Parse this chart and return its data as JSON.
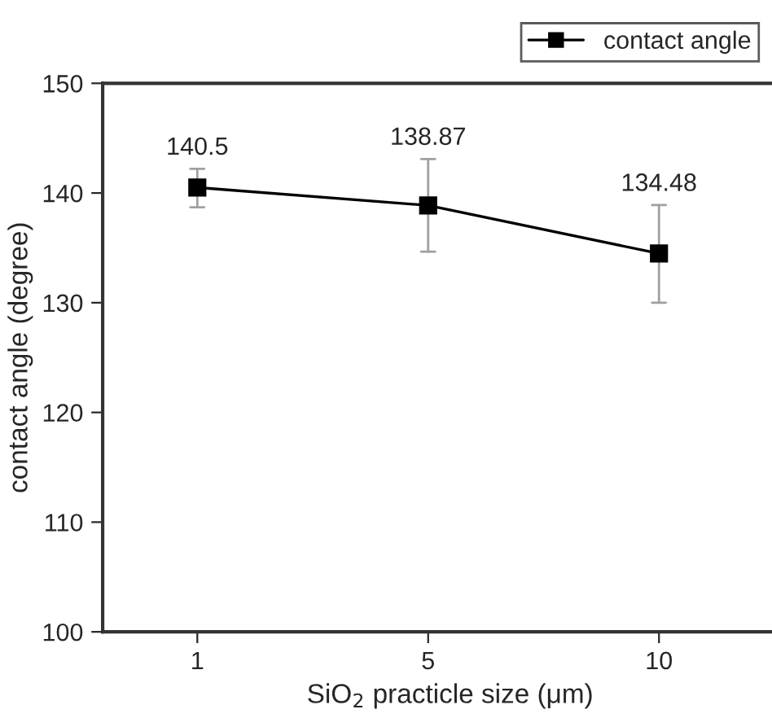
{
  "chart_data": {
    "type": "line",
    "xlabel": "SiO$_{2}$ practicle size (μm)",
    "ylabel": "contact angle (degree)",
    "categories": [
      "1",
      "5",
      "10"
    ],
    "series": [
      {
        "name": "contact angle",
        "color": "#000000",
        "values": [
          140.5,
          138.87,
          134.48
        ],
        "errors": [
          [
            138.7,
            142.2
          ],
          [
            134.65,
            143.1
          ],
          [
            130.0,
            138.9
          ]
        ]
      }
    ],
    "ylim": [
      100,
      150
    ],
    "yticks": [
      100,
      110,
      120,
      130,
      140,
      150
    ],
    "data_labels": true,
    "marker": "square",
    "line_style": "solid",
    "grid": false,
    "legend": "top right"
  }
}
